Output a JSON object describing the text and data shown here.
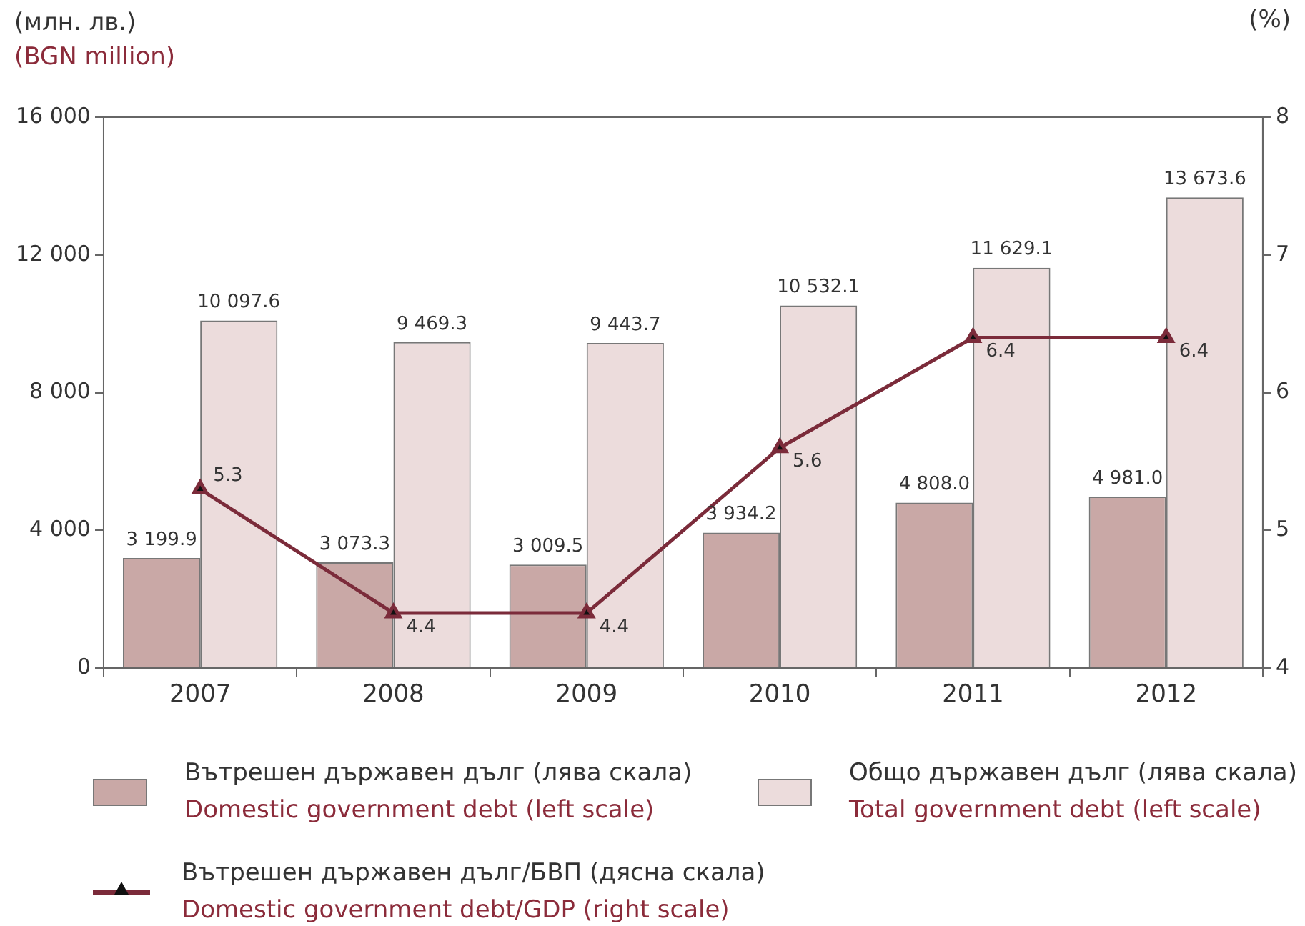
{
  "chart_data": {
    "type": "bar",
    "ylabel": "(млн. лв.)\n(BGN million)",
    "y2label": "(%)",
    "categories": [
      "2007",
      "2008",
      "2009",
      "2010",
      "2011",
      "2012"
    ],
    "series": [
      {
        "name": "Вътрешен държавен дълг (лява скала)\nDomestic government debt (left scale)",
        "color": "#c9a8a6",
        "values": [
          3199.9,
          3073.3,
          3009.5,
          3934.2,
          4808.0,
          4981.0
        ],
        "value_labels": [
          "3 199.9",
          "3 073.3",
          "3 009.5",
          "3 934.2",
          "4 808.0",
          "4 981.0"
        ]
      },
      {
        "name": "Общо държавен дълг (лява скала)\nTotal government debt (left scale)",
        "color": "#ecdcdc",
        "values": [
          10097.6,
          9469.3,
          9443.7,
          10532.1,
          11629.1,
          13673.6
        ],
        "value_labels": [
          "10 097.6",
          "9 469.3",
          "9 443.7",
          "10 532.1",
          "11 629.1",
          "13 673.6"
        ]
      },
      {
        "name": "Вътрешен държавен дълг/БВП (дясна скала)\nDomestic government debt/GDP (right scale)",
        "type": "line",
        "axis": "y2",
        "color": "#7b2b3a",
        "marker": "triangle",
        "line_style": "solid",
        "values": [
          5.3,
          4.4,
          4.4,
          5.6,
          6.4,
          6.4
        ],
        "value_labels": [
          "5.3",
          "4.4",
          "4.4",
          "5.6",
          "6.4",
          "6.4"
        ]
      }
    ],
    "ylim": [
      0,
      16000
    ],
    "yticks": [
      0,
      {
        "value": 4000,
        "label": "4 000"
      },
      {
        "value": 8000,
        "label": "8 000"
      },
      {
        "value": 12000,
        "label": "12 000"
      },
      {
        "value": 16000,
        "label": "16 000"
      }
    ],
    "y2lim": [
      4,
      8
    ],
    "y2ticks": [
      4,
      5,
      6,
      7,
      8
    ],
    "grid": false,
    "legend": "bottom"
  }
}
